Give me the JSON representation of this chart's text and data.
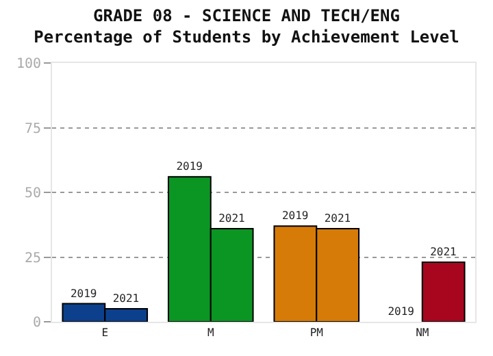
{
  "chart_data": {
    "type": "bar",
    "title": "GRADE 08 - SCIENCE AND TECH/ENG\nPercentage of Students by Achievement Level",
    "categories": [
      "E",
      "M",
      "PM",
      "NM"
    ],
    "series": [
      {
        "name": "2019",
        "colors": [
          "#0d408c",
          "#0b9624",
          "#d67b07",
          null
        ],
        "values": [
          7,
          56,
          37,
          0
        ]
      },
      {
        "name": "2021",
        "colors": [
          "#0d408c",
          "#0b9624",
          "#d67b07",
          "#a8061f"
        ],
        "values": [
          5,
          36,
          36,
          23
        ]
      }
    ],
    "ylim": [
      0,
      100
    ],
    "yticks": [
      0,
      25,
      50,
      75,
      100
    ],
    "grid": "y",
    "legend": false
  }
}
